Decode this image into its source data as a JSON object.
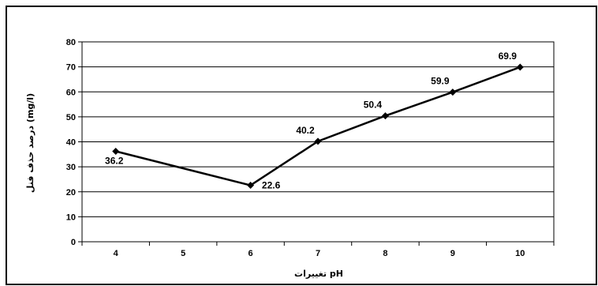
{
  "chart_data": {
    "type": "line",
    "categories": [
      "4",
      "5",
      "6",
      "7",
      "8",
      "9",
      "10"
    ],
    "x": [
      4,
      6,
      7,
      8,
      9,
      10
    ],
    "values": [
      36.2,
      22.6,
      40.2,
      50.4,
      59.9,
      69.9
    ],
    "data_labels": [
      "36.2",
      "22.6",
      "40.2",
      "50.4",
      "59.9",
      "69.9"
    ],
    "yticks": [
      "0",
      "10",
      "20",
      "30",
      "40",
      "50",
      "60",
      "70",
      "80"
    ],
    "ylim": [
      0,
      80
    ],
    "xlabel": "تغییرات pH",
    "ylabel": "درصد حذف فنل (mg/l)",
    "grid": true,
    "legend": "none",
    "line_color": "#000000",
    "border_color": "#000000"
  }
}
